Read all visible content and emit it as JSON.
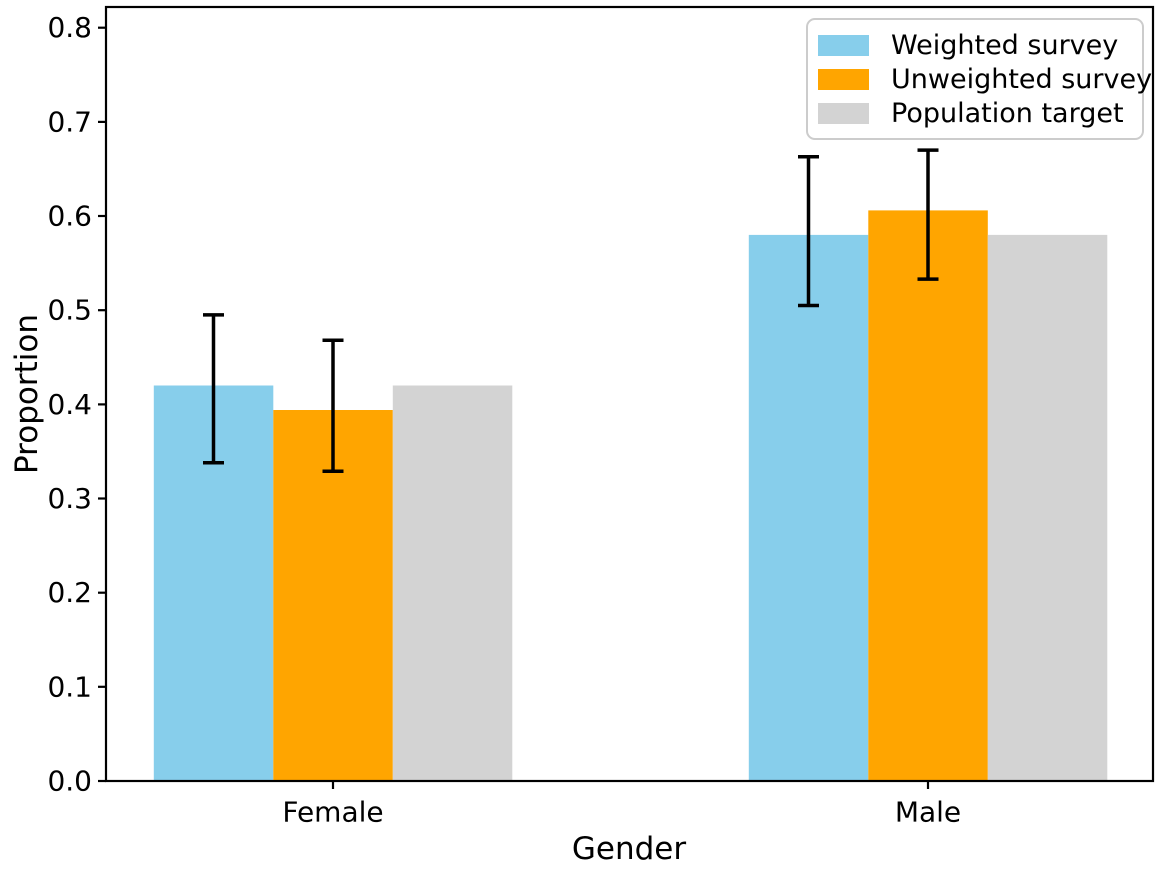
{
  "chart_data": {
    "type": "bar",
    "xlabel": "Gender",
    "ylabel": "Proportion",
    "categories": [
      "Female",
      "Male"
    ],
    "series": [
      {
        "name": "Weighted survey",
        "color": "#87CEEB",
        "values": [
          0.42,
          0.58
        ],
        "error_low": [
          0.338,
          0.505
        ],
        "error_high": [
          0.495,
          0.663
        ]
      },
      {
        "name": "Unweighted survey",
        "color": "#FFA500",
        "values": [
          0.394,
          0.606
        ],
        "error_low": [
          0.329,
          0.533
        ],
        "error_high": [
          0.468,
          0.67
        ]
      },
      {
        "name": "Population target",
        "color": "#D3D3D3",
        "values": [
          0.42,
          0.58
        ],
        "error_low": null,
        "error_high": null
      }
    ],
    "ylim": [
      0.0,
      0.822
    ],
    "yticks": [
      0.0,
      0.1,
      0.2,
      0.3,
      0.4,
      0.5,
      0.6,
      0.7,
      0.8
    ],
    "ytick_labels": [
      "0.0",
      "0.1",
      "0.2",
      "0.3",
      "0.4",
      "0.5",
      "0.6",
      "0.7",
      "0.8"
    ],
    "grid": false,
    "legend_position": "upper right",
    "colors": {
      "error_bar": "#000000",
      "axis": "#000000",
      "text": "#000000",
      "legend_border": "#CCCCCC",
      "background": "#FFFFFF"
    }
  }
}
